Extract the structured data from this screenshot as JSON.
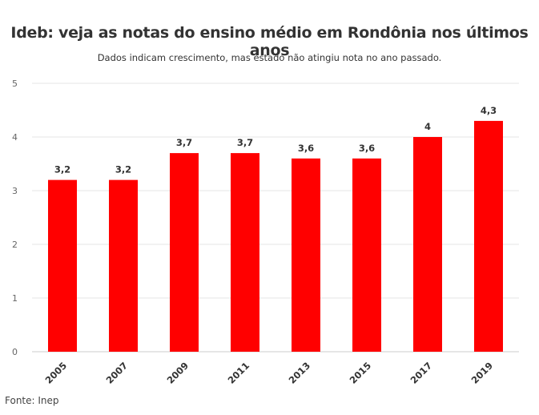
{
  "title": "Ideb: veja as notas do ensino médio em Rondônia nos últimos anos",
  "subtitle": "Dados indicam crescimento, mas estado não atingiu nota no ano passado.",
  "source": "Fonte: Inep",
  "colors": {
    "bar": "#ff0000",
    "grid": "#e6e6e6",
    "axis": "#cccccc",
    "text": "#333333"
  },
  "chart_data": {
    "type": "bar",
    "categories": [
      "2005",
      "2007",
      "2009",
      "2011",
      "2013",
      "2015",
      "2017",
      "2019"
    ],
    "values": [
      3.2,
      3.2,
      3.7,
      3.7,
      3.6,
      3.6,
      4,
      4.3
    ],
    "value_labels": [
      "3,2",
      "3,2",
      "3,7",
      "3,7",
      "3,6",
      "3,6",
      "4",
      "4,3"
    ],
    "yticks": [
      "0",
      "1",
      "2",
      "3",
      "4",
      "5"
    ],
    "ylim": [
      0,
      5
    ],
    "grid": true,
    "title": "Ideb: veja as notas do ensino médio em Rondônia nos últimos anos",
    "xlabel": "",
    "ylabel": ""
  }
}
